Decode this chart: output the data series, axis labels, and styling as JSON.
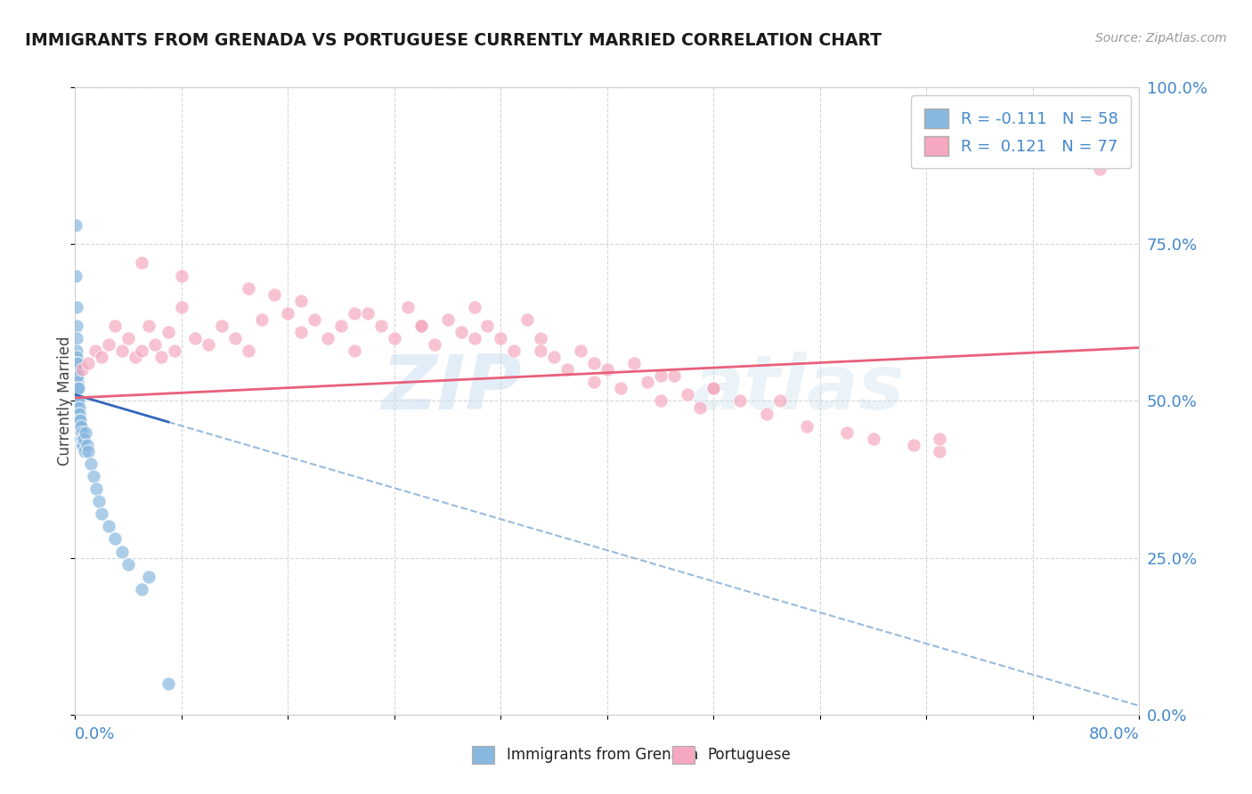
{
  "title": "IMMIGRANTS FROM GRENADA VS PORTUGUESE CURRENTLY MARRIED CORRELATION CHART",
  "source": "Source: ZipAtlas.com",
  "ylabel": "Currently Married",
  "right_ytick_vals": [
    0.0,
    25.0,
    50.0,
    75.0,
    100.0
  ],
  "xlim": [
    0.0,
    80.0
  ],
  "ylim": [
    0.0,
    100.0
  ],
  "blue_color": "#89b8df",
  "pink_color": "#f5a8bf",
  "blue_line_solid_color": "#3366bb",
  "blue_line_dash_color": "#99bbdd",
  "pink_line_color": "#e8607a",
  "title_color": "#1a1a1a",
  "source_color": "#999999",
  "axis_label_color": "#4488cc",
  "background_color": "#ffffff",
  "grid_color": "#cccccc",
  "watermark": "ZIPAtlas",
  "blue_R": "-0.111",
  "blue_N": "58",
  "pink_R": "0.121",
  "pink_N": "77",
  "blue_scatter_x": [
    0.05,
    0.07,
    0.08,
    0.09,
    0.1,
    0.1,
    0.1,
    0.12,
    0.12,
    0.13,
    0.13,
    0.14,
    0.14,
    0.15,
    0.15,
    0.16,
    0.16,
    0.17,
    0.17,
    0.18,
    0.18,
    0.2,
    0.2,
    0.2,
    0.22,
    0.23,
    0.25,
    0.25,
    0.28,
    0.3,
    0.3,
    0.32,
    0.35,
    0.38,
    0.4,
    0.42,
    0.45,
    0.48,
    0.5,
    0.55,
    0.6,
    0.65,
    0.7,
    0.8,
    0.9,
    1.0,
    1.2,
    1.4,
    1.6,
    1.8,
    2.0,
    2.5,
    3.0,
    3.5,
    4.0,
    5.0,
    7.0,
    5.5
  ],
  "blue_scatter_y": [
    78.0,
    70.0,
    65.0,
    62.0,
    60.0,
    58.0,
    55.0,
    57.0,
    54.0,
    56.0,
    52.0,
    55.0,
    50.0,
    53.0,
    49.0,
    56.0,
    52.0,
    50.0,
    47.0,
    54.0,
    50.0,
    52.0,
    49.0,
    46.0,
    50.0,
    48.0,
    52.0,
    46.0,
    49.0,
    48.0,
    45.0,
    47.0,
    46.0,
    44.0,
    47.0,
    44.0,
    46.0,
    43.0,
    45.0,
    44.0,
    43.0,
    44.0,
    42.0,
    45.0,
    43.0,
    42.0,
    40.0,
    38.0,
    36.0,
    34.0,
    32.0,
    30.0,
    28.0,
    26.0,
    24.0,
    20.0,
    5.0,
    22.0
  ],
  "pink_scatter_x": [
    0.5,
    1.0,
    1.5,
    2.0,
    2.5,
    3.0,
    3.5,
    4.0,
    4.5,
    5.0,
    5.5,
    6.0,
    6.5,
    7.0,
    7.5,
    8.0,
    9.0,
    10.0,
    11.0,
    12.0,
    13.0,
    14.0,
    15.0,
    16.0,
    17.0,
    18.0,
    19.0,
    20.0,
    21.0,
    22.0,
    23.0,
    24.0,
    25.0,
    26.0,
    27.0,
    28.0,
    29.0,
    30.0,
    31.0,
    32.0,
    33.0,
    34.0,
    35.0,
    36.0,
    37.0,
    38.0,
    39.0,
    40.0,
    41.0,
    42.0,
    43.0,
    44.0,
    45.0,
    46.0,
    47.0,
    48.0,
    50.0,
    52.0,
    55.0,
    58.0,
    60.0,
    63.0,
    65.0,
    5.0,
    8.0,
    13.0,
    17.0,
    21.0,
    26.0,
    30.0,
    35.0,
    39.0,
    44.0,
    48.0,
    53.0,
    65.0,
    77.0
  ],
  "pink_scatter_y": [
    55.0,
    56.0,
    58.0,
    57.0,
    59.0,
    62.0,
    58.0,
    60.0,
    57.0,
    58.0,
    62.0,
    59.0,
    57.0,
    61.0,
    58.0,
    65.0,
    60.0,
    59.0,
    62.0,
    60.0,
    58.0,
    63.0,
    67.0,
    64.0,
    61.0,
    63.0,
    60.0,
    62.0,
    58.0,
    64.0,
    62.0,
    60.0,
    65.0,
    62.0,
    59.0,
    63.0,
    61.0,
    65.0,
    62.0,
    60.0,
    58.0,
    63.0,
    60.0,
    57.0,
    55.0,
    58.0,
    53.0,
    55.0,
    52.0,
    56.0,
    53.0,
    50.0,
    54.0,
    51.0,
    49.0,
    52.0,
    50.0,
    48.0,
    46.0,
    45.0,
    44.0,
    43.0,
    42.0,
    72.0,
    70.0,
    68.0,
    66.0,
    64.0,
    62.0,
    60.0,
    58.0,
    56.0,
    54.0,
    52.0,
    50.0,
    44.0,
    87.0
  ],
  "blue_trend_x0": 0.0,
  "blue_trend_y0": 51.0,
  "blue_trend_slope": -0.62,
  "blue_solid_end_x": 7.0,
  "pink_trend_x0": 0.0,
  "pink_trend_y0": 50.5,
  "pink_trend_slope": 0.1
}
